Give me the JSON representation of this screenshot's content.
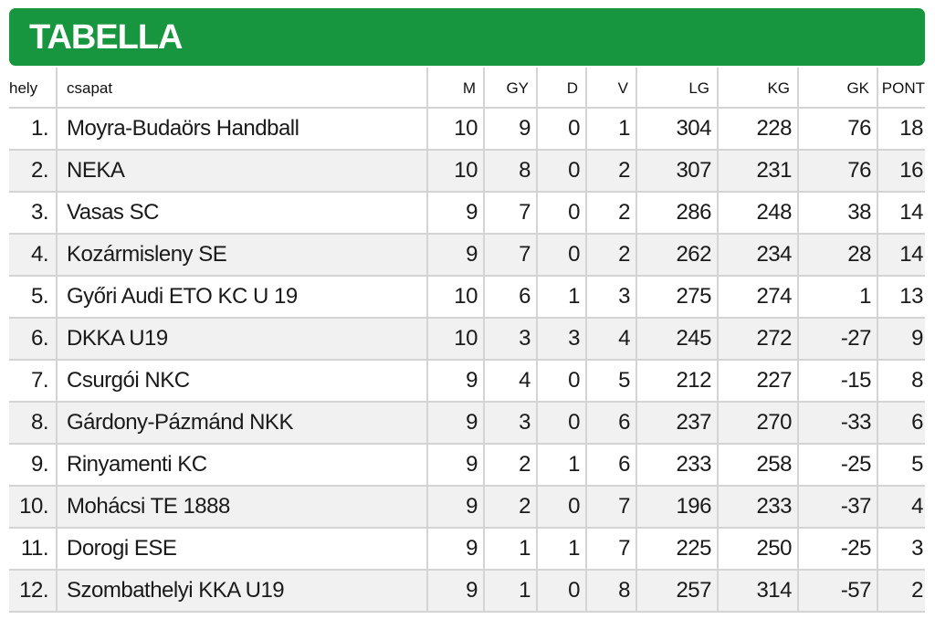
{
  "header": {
    "title": "TABELLA"
  },
  "columns": {
    "hely": "hely",
    "csapat": "csapat",
    "m": "M",
    "gy": "GY",
    "d": "D",
    "v": "V",
    "lg": "LG",
    "kg": "KG",
    "gk": "GK",
    "pont": "PONT"
  },
  "rows": [
    {
      "hely": "1.",
      "csapat": "Moyra-Budaörs Handball",
      "m": "10",
      "gy": "9",
      "d": "0",
      "v": "1",
      "lg": "304",
      "kg": "228",
      "gk": "76",
      "pont": "18"
    },
    {
      "hely": "2.",
      "csapat": "NEKA",
      "m": "10",
      "gy": "8",
      "d": "0",
      "v": "2",
      "lg": "307",
      "kg": "231",
      "gk": "76",
      "pont": "16"
    },
    {
      "hely": "3.",
      "csapat": "Vasas SC",
      "m": "9",
      "gy": "7",
      "d": "0",
      "v": "2",
      "lg": "286",
      "kg": "248",
      "gk": "38",
      "pont": "14"
    },
    {
      "hely": "4.",
      "csapat": "Kozármisleny SE",
      "m": "9",
      "gy": "7",
      "d": "0",
      "v": "2",
      "lg": "262",
      "kg": "234",
      "gk": "28",
      "pont": "14"
    },
    {
      "hely": "5.",
      "csapat": "Győri Audi ETO KC U 19",
      "m": "10",
      "gy": "6",
      "d": "1",
      "v": "3",
      "lg": "275",
      "kg": "274",
      "gk": "1",
      "pont": "13"
    },
    {
      "hely": "6.",
      "csapat": "DKKA U19",
      "m": "10",
      "gy": "3",
      "d": "3",
      "v": "4",
      "lg": "245",
      "kg": "272",
      "gk": "-27",
      "pont": "9"
    },
    {
      "hely": "7.",
      "csapat": "Csurgói NKC",
      "m": "9",
      "gy": "4",
      "d": "0",
      "v": "5",
      "lg": "212",
      "kg": "227",
      "gk": "-15",
      "pont": "8"
    },
    {
      "hely": "8.",
      "csapat": "Gárdony-Pázmánd NKK",
      "m": "9",
      "gy": "3",
      "d": "0",
      "v": "6",
      "lg": "237",
      "kg": "270",
      "gk": "-33",
      "pont": "6"
    },
    {
      "hely": "9.",
      "csapat": "Rinyamenti KC",
      "m": "9",
      "gy": "2",
      "d": "1",
      "v": "6",
      "lg": "233",
      "kg": "258",
      "gk": "-25",
      "pont": "5"
    },
    {
      "hely": "10.",
      "csapat": "Mohácsi TE 1888",
      "m": "9",
      "gy": "2",
      "d": "0",
      "v": "7",
      "lg": "196",
      "kg": "233",
      "gk": "-37",
      "pont": "4"
    },
    {
      "hely": "11.",
      "csapat": "Dorogi ESE",
      "m": "9",
      "gy": "1",
      "d": "1",
      "v": "7",
      "lg": "225",
      "kg": "250",
      "gk": "-25",
      "pont": "3"
    },
    {
      "hely": "12.",
      "csapat": "Szombathelyi KKA U19",
      "m": "9",
      "gy": "1",
      "d": "0",
      "v": "8",
      "lg": "257",
      "kg": "314",
      "gk": "-57",
      "pont": "2"
    }
  ],
  "colors": {
    "header_green": "#17963f",
    "row_stripe": "#f1f1f1",
    "grid_line": "#d4d4d4"
  }
}
